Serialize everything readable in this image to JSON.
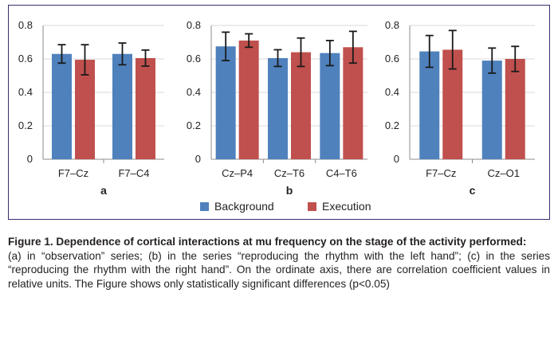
{
  "chart_data": [
    {
      "type": "bar",
      "panel": "a",
      "categories": [
        "F7–Cz",
        "F7–C4"
      ],
      "series": [
        {
          "name": "Background",
          "values": [
            0.63,
            0.63
          ],
          "errors": [
            0.055,
            0.065
          ]
        },
        {
          "name": "Execution",
          "values": [
            0.595,
            0.605
          ],
          "errors": [
            0.09,
            0.048
          ]
        }
      ],
      "ylim": [
        0,
        0.8
      ],
      "yticks": [
        "0",
        "0.2",
        "0.4",
        "0.6",
        "0.8"
      ]
    },
    {
      "type": "bar",
      "panel": "b",
      "categories": [
        "Cz–P4",
        "Cz–T6",
        "C4–T6"
      ],
      "series": [
        {
          "name": "Background",
          "values": [
            0.675,
            0.605,
            0.635
          ],
          "errors": [
            0.085,
            0.05,
            0.075
          ]
        },
        {
          "name": "Execution",
          "values": [
            0.71,
            0.64,
            0.67
          ],
          "errors": [
            0.04,
            0.085,
            0.095
          ]
        }
      ],
      "ylim": [
        0,
        0.8
      ],
      "yticks": [
        "0",
        "0.2",
        "0.4",
        "0.6",
        "0.8"
      ]
    },
    {
      "type": "bar",
      "panel": "c",
      "categories": [
        "F7–Cz",
        "Cz–O1"
      ],
      "series": [
        {
          "name": "Background",
          "values": [
            0.645,
            0.59
          ],
          "errors": [
            0.095,
            0.075
          ]
        },
        {
          "name": "Execution",
          "values": [
            0.655,
            0.6
          ],
          "errors": [
            0.115,
            0.075
          ]
        }
      ],
      "ylim": [
        0,
        0.8
      ],
      "yticks": [
        "0",
        "0.2",
        "0.4",
        "0.6",
        "0.8"
      ]
    }
  ],
  "legend": {
    "items": [
      "Background",
      "Execution"
    ],
    "placement": "bottom-center"
  },
  "colors": {
    "background": "#4f81bd",
    "execution": "#c0504d",
    "grid": "#d9d9d9",
    "frame": "#3c2a6e"
  },
  "caption": {
    "title": "Figure 1. Dependence of cortical interactions at mu frequency on the stage of the activity performed:",
    "body": "(a) in “observation” series; (b) in the series “reproducing the rhythm with the left hand”; (c) in the series “reproducing the rhythm with the right hand”. On the ordinate axis, there are correlation coefficient values in relative units. The Figure shows only statistically significant differences (p<0.05)"
  }
}
